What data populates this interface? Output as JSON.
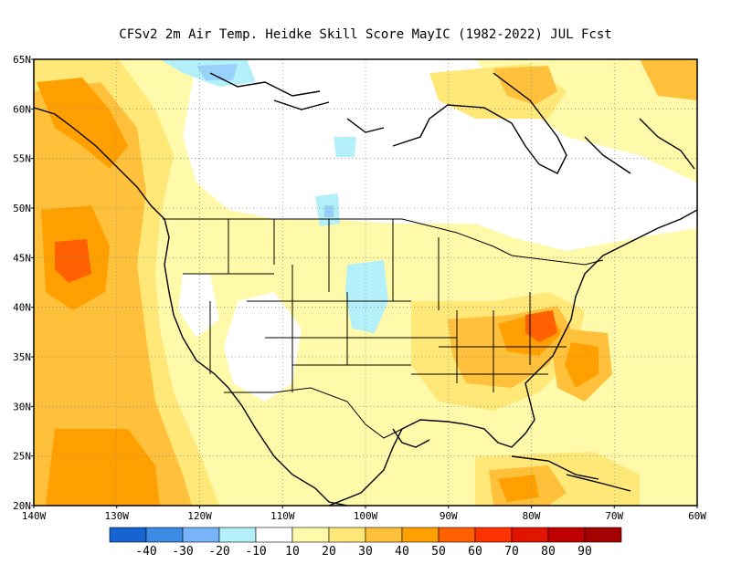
{
  "title": "CFSv2  2m Air Temp. Heidke Skill Score MayIC (1982-2022) JUL Fcst",
  "map": {
    "lon_range": [
      -140,
      -60
    ],
    "lat_range": [
      20,
      65
    ],
    "grid": "dotted",
    "lat_ticks": [
      {
        "value": 65,
        "label": "65N"
      },
      {
        "value": 60,
        "label": "60N"
      },
      {
        "value": 55,
        "label": "55N"
      },
      {
        "value": 50,
        "label": "50N"
      },
      {
        "value": 45,
        "label": "45N"
      },
      {
        "value": 40,
        "label": "40N"
      },
      {
        "value": 35,
        "label": "35N"
      },
      {
        "value": 30,
        "label": "30N"
      },
      {
        "value": 25,
        "label": "25N"
      },
      {
        "value": 20,
        "label": "20N"
      }
    ],
    "lon_ticks": [
      {
        "value": -140,
        "label": "140W"
      },
      {
        "value": -130,
        "label": "130W"
      },
      {
        "value": -120,
        "label": "120W"
      },
      {
        "value": -110,
        "label": "110W"
      },
      {
        "value": -100,
        "label": "100W"
      },
      {
        "value": -90,
        "label": "90W"
      },
      {
        "value": -80,
        "label": "80W"
      },
      {
        "value": -70,
        "label": "70W"
      },
      {
        "value": -60,
        "label": "60W"
      }
    ],
    "field_colors": {
      "background": "#ffffff",
      "neg10": "#b4f0fa",
      "neg20": "#96d2fa",
      "neg30": "#5fa0f0",
      "pos10": "#fffaaa",
      "pos20": "#ffe878",
      "pos30": "#ffc03c",
      "pos40": "#ffa000",
      "pos50": "#ff6000"
    }
  },
  "colorbar": {
    "colors": [
      "#1464d2",
      "#3c8ce6",
      "#78b4fa",
      "#b4f0fa",
      "#ffffff",
      "#fffaaa",
      "#ffe878",
      "#ffc03c",
      "#ffa000",
      "#ff6000",
      "#ff3200",
      "#e11400",
      "#c00000",
      "#a50000"
    ],
    "labels": [
      "-40",
      "-30",
      "-20",
      "-10",
      "10",
      "20",
      "30",
      "40",
      "50",
      "60",
      "70",
      "80",
      "90"
    ]
  }
}
